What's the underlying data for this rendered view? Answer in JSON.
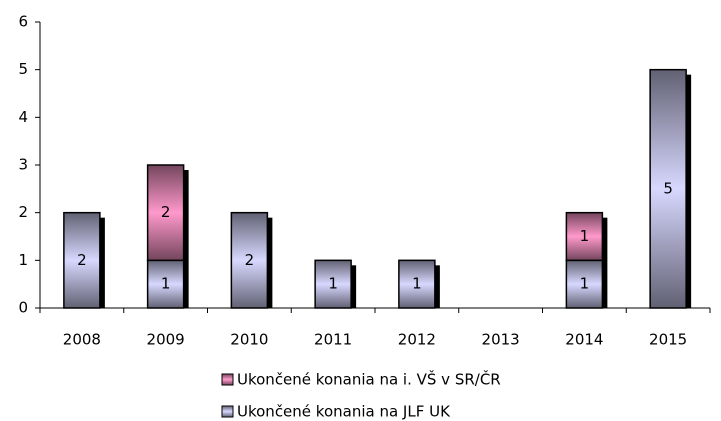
{
  "chart_data": {
    "type": "stacked_bar",
    "categories": [
      "2008",
      "2009",
      "2010",
      "2011",
      "2012",
      "2013",
      "2014",
      "2015"
    ],
    "series": [
      {
        "name": "Ukončené konania na JLF UK",
        "color": "#d8d8ff",
        "values": [
          2,
          1,
          2,
          1,
          1,
          0,
          1,
          5
        ]
      },
      {
        "name": "Ukončené konania na i. VŠ v SR/ČR",
        "color": "#ff99cc",
        "values": [
          0,
          2,
          0,
          0,
          0,
          0,
          1,
          0
        ]
      }
    ],
    "ylim": [
      0,
      6
    ],
    "yticks": [
      0,
      1,
      2,
      3,
      4,
      5,
      6
    ],
    "legend": "bottom"
  }
}
